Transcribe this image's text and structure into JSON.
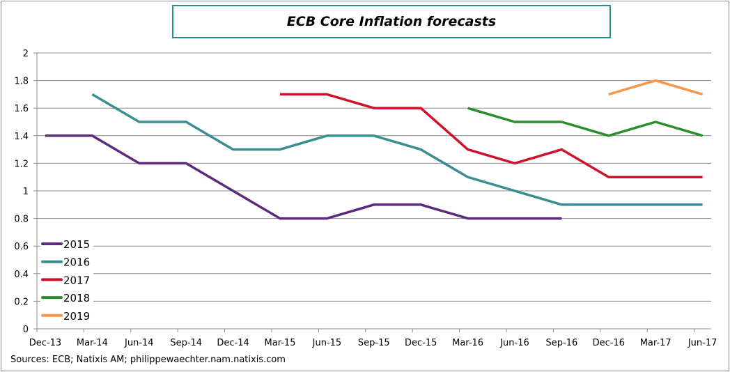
{
  "chart_data": {
    "type": "line",
    "title": "ECB Core Inflation forecasts",
    "categories": [
      "Dec-13",
      "Mar-14",
      "Jun-14",
      "Sep-14",
      "Dec-14",
      "Mar-15",
      "Jun-15",
      "Sep-15",
      "Dec-15",
      "Mar-16",
      "Jun-16",
      "Sep-16",
      "Dec-16",
      "Mar-17",
      "Jun-17"
    ],
    "ylim": [
      0,
      2
    ],
    "yticks": [
      "0",
      "0.2",
      "0.4",
      "0.6",
      "0.8",
      "1",
      "1.2",
      "1.4",
      "1.6",
      "1.8",
      "2"
    ],
    "grid": true,
    "legend": "bottom-left",
    "series": [
      {
        "name": "2015",
        "color": "#5b2a7e",
        "values": [
          1.4,
          1.4,
          1.2,
          1.2,
          1.0,
          0.8,
          0.8,
          0.9,
          0.9,
          0.8,
          0.8,
          0.8,
          null,
          null,
          null
        ]
      },
      {
        "name": "2016",
        "color": "#3a8d92",
        "values": [
          null,
          1.7,
          1.5,
          1.5,
          1.3,
          1.3,
          1.4,
          1.4,
          1.3,
          1.1,
          1.0,
          0.9,
          0.9,
          0.9,
          0.9
        ]
      },
      {
        "name": "2017",
        "color": "#d0112b",
        "values": [
          null,
          null,
          null,
          null,
          null,
          1.7,
          1.7,
          1.6,
          1.6,
          1.3,
          1.2,
          1.3,
          1.1,
          1.1,
          1.1
        ]
      },
      {
        "name": "2018",
        "color": "#2a8c2a",
        "values": [
          null,
          null,
          null,
          null,
          null,
          null,
          null,
          null,
          null,
          1.6,
          1.5,
          1.5,
          1.4,
          1.5,
          1.4
        ]
      },
      {
        "name": "2019",
        "color": "#f79646",
        "values": [
          null,
          null,
          null,
          null,
          null,
          null,
          null,
          null,
          null,
          null,
          null,
          null,
          1.7,
          1.8,
          1.7
        ]
      }
    ]
  },
  "source": "Sources: ECB; Natixis AM;  philippewaechter.nam.natixis.com"
}
